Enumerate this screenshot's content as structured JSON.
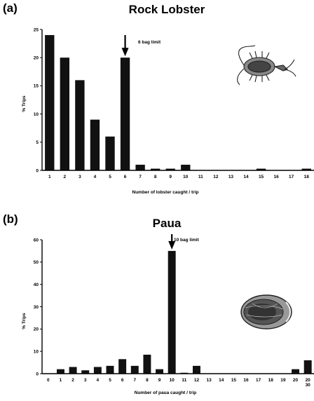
{
  "chart_data": [
    {
      "type": "bar",
      "panel_label": "(a)",
      "title": "Rock Lobster",
      "xlabel": "Number of lobster caught / trip",
      "ylabel": "% Trips",
      "categories": [
        "1",
        "2",
        "3",
        "4",
        "5",
        "6",
        "7",
        "8",
        "9",
        "10",
        "11",
        "12",
        "13",
        "14",
        "15",
        "16",
        "17",
        "18"
      ],
      "values": [
        24,
        20,
        16,
        9,
        6,
        20,
        1,
        0.3,
        0.3,
        1,
        0,
        0,
        0,
        0,
        0.3,
        0,
        0,
        0.3
      ],
      "ylim": [
        0,
        25
      ],
      "yticks": [
        0,
        5,
        10,
        15,
        20,
        25
      ],
      "annotation": {
        "text": "6 bag limit",
        "category": "6"
      },
      "illustration": "lobster-drawing",
      "grid": false,
      "bar_color": "#111111"
    },
    {
      "type": "bar",
      "panel_label": "(b)",
      "title": "Paua",
      "xlabel": "Number of paua caught / trip",
      "ylabel": "% Trips",
      "categories": [
        "0",
        "1",
        "2",
        "3",
        "4",
        "5",
        "6",
        "7",
        "8",
        "9",
        "10",
        "11",
        "12",
        "13",
        "14",
        "15",
        "16",
        "17",
        "18",
        "19",
        "20",
        "20\n30"
      ],
      "values": [
        0,
        2,
        3,
        1.5,
        3,
        3.5,
        6.5,
        3.5,
        8.5,
        2,
        55,
        0.4,
        3.5,
        0,
        0,
        0,
        0,
        0,
        0,
        0,
        2,
        6
      ],
      "ylim": [
        0,
        60
      ],
      "yticks": [
        0,
        10,
        20,
        30,
        40,
        50,
        60
      ],
      "annotation": {
        "text": "10 bag limit",
        "category": "10"
      },
      "illustration": "paua-shell-drawing",
      "grid": false,
      "bar_color": "#111111"
    }
  ]
}
